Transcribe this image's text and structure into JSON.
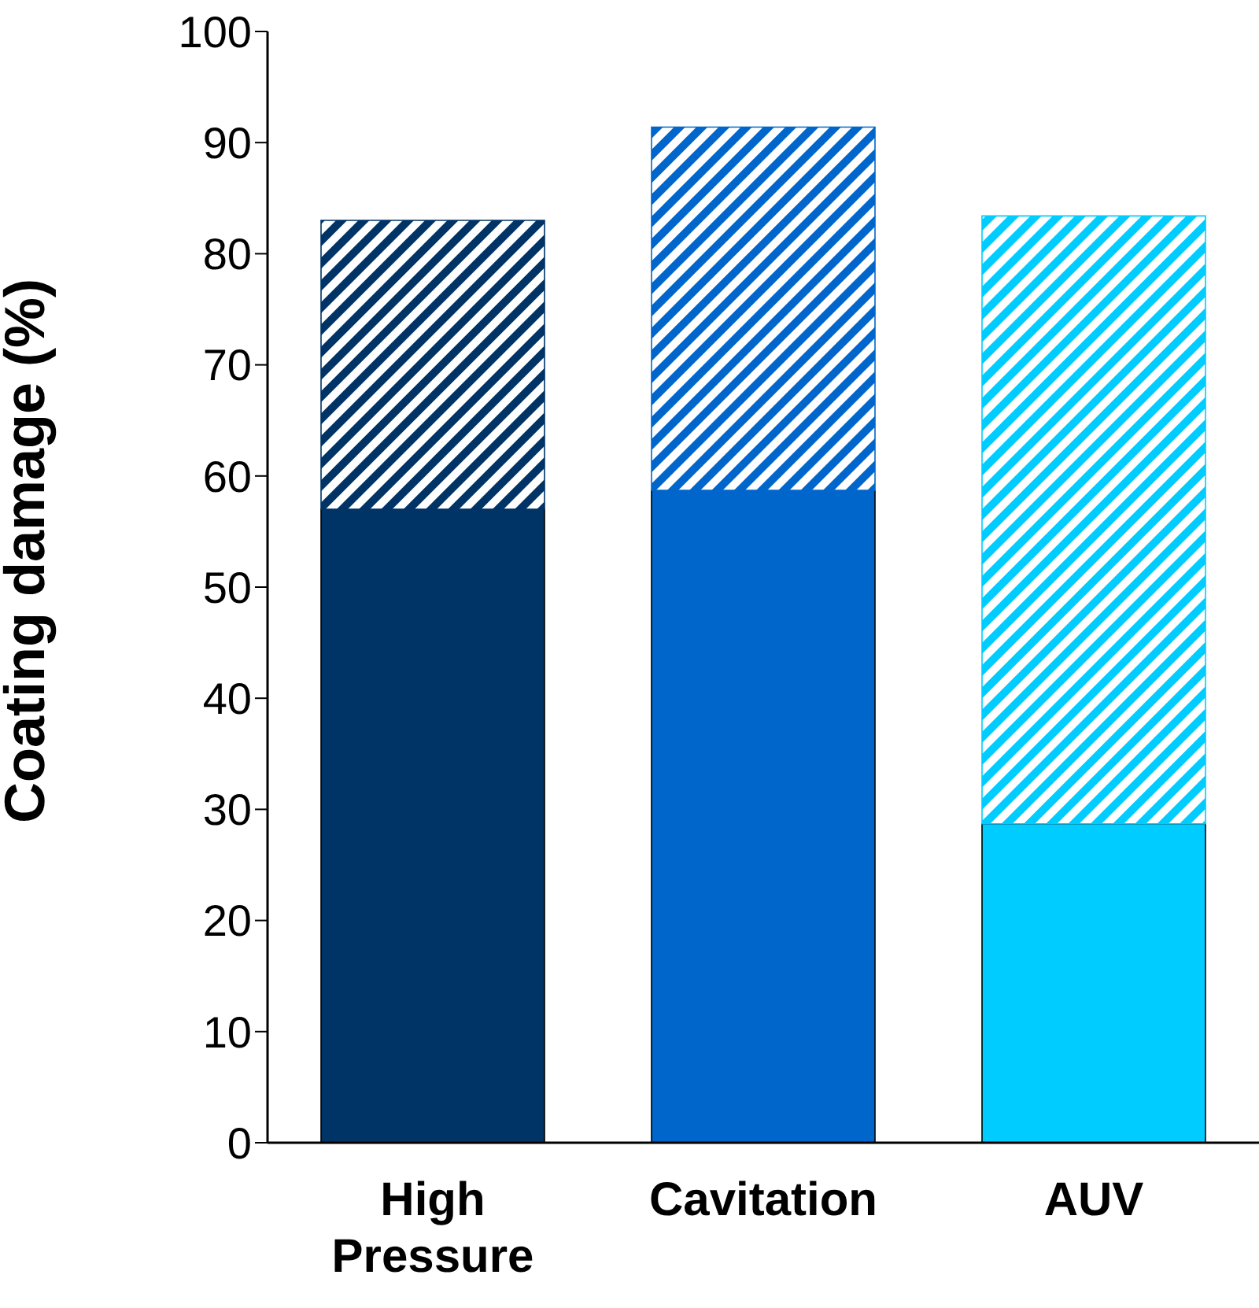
{
  "chart_data": {
    "type": "bar",
    "stacked": true,
    "ylabel": "Coating damage (%)",
    "categories": [
      "High Pressure",
      "Cavitation",
      "AUV"
    ],
    "series": [
      {
        "colors": [
          "#003366",
          "#0066cc",
          "#00ccff"
        ],
        "values": [
          57,
          58.7,
          28.7
        ]
      },
      {
        "colors": [
          "#003366",
          "#0066cc",
          "#00ccff"
        ],
        "values": [
          26,
          32.7,
          54.7
        ]
      }
    ],
    "ylim": [
      0,
      100
    ],
    "yticks": [
      0,
      10,
      20,
      30,
      40,
      50,
      60,
      70,
      80,
      90,
      100
    ],
    "grid": false,
    "legend": false
  }
}
